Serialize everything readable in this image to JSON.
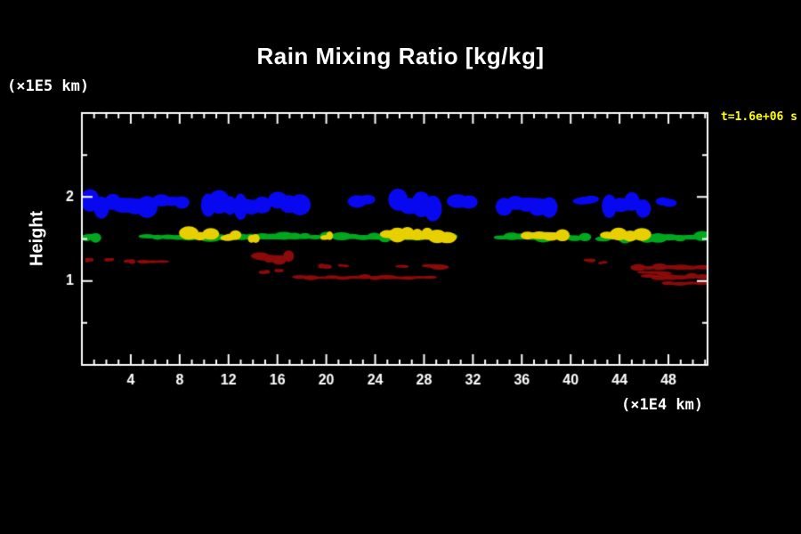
{
  "title": "Rain Mixing Ratio [kg/kg]",
  "labels": {
    "y_unit": "(×1E5 km)",
    "x_unit": "(×1E4 km)",
    "y_axis": "Height",
    "annotation": "t=1.6e+06 s"
  },
  "colors": {
    "background": "#000000",
    "foreground": "#ffffff",
    "annotation": "#ffff00"
  },
  "chart_data": {
    "type": "heatmap",
    "subtype": "filled-contour-cross-section",
    "title": "Rain Mixing Ratio [kg/kg]",
    "xlabel": "(×1E4 km)",
    "ylabel": "Height (×1E5 km)",
    "annotation": "t=1.6e+06 s",
    "grid": false,
    "legend": "none",
    "xlim": [
      0,
      51.2
    ],
    "ylim": [
      0,
      3.0
    ],
    "xticks": [
      4,
      8,
      12,
      16,
      20,
      24,
      28,
      32,
      36,
      40,
      44,
      48
    ],
    "x_minor_step": 1,
    "yticks": [
      1,
      2
    ],
    "y_minor_step": 0.5,
    "levels": {
      "dark_red": {
        "color": "#8b0a0a"
      },
      "green": {
        "color": "#00a81e"
      },
      "yellow": {
        "color": "#e8d000"
      },
      "blue": {
        "color": "#0808f0"
      }
    },
    "regions": [
      {
        "level": "dark_red",
        "x0": 0.3,
        "x1": 0.9,
        "y": 1.25,
        "h": 0.05
      },
      {
        "level": "dark_red",
        "x0": 1.9,
        "x1": 2.6,
        "y": 1.25,
        "h": 0.05
      },
      {
        "level": "dark_red",
        "x0": 3.5,
        "x1": 4.3,
        "y": 1.24,
        "h": 0.05
      },
      {
        "level": "dark_red",
        "x0": 4.7,
        "x1": 6.9,
        "y": 1.23,
        "h": 0.04
      },
      {
        "level": "dark_red",
        "x0": 14.2,
        "x1": 17.3,
        "y": 1.27,
        "h": 0.12
      },
      {
        "level": "dark_red",
        "x0": 14.6,
        "x1": 15.3,
        "y": 1.1,
        "h": 0.04
      },
      {
        "level": "dark_red",
        "x0": 15.8,
        "x1": 16.4,
        "y": 1.12,
        "h": 0.04
      },
      {
        "level": "dark_red",
        "x0": 17.4,
        "x1": 28.9,
        "y": 1.04,
        "h": 0.05
      },
      {
        "level": "dark_red",
        "x0": 19.4,
        "x1": 20.3,
        "y": 1.18,
        "h": 0.05
      },
      {
        "level": "dark_red",
        "x0": 21.0,
        "x1": 21.8,
        "y": 1.18,
        "h": 0.04
      },
      {
        "level": "dark_red",
        "x0": 25.8,
        "x1": 26.6,
        "y": 1.18,
        "h": 0.04
      },
      {
        "level": "dark_red",
        "x0": 28.0,
        "x1": 29.7,
        "y": 1.18,
        "h": 0.07
      },
      {
        "level": "dark_red",
        "x0": 41.2,
        "x1": 41.9,
        "y": 1.24,
        "h": 0.05
      },
      {
        "level": "dark_red",
        "x0": 42.3,
        "x1": 42.9,
        "y": 1.22,
        "h": 0.04
      },
      {
        "level": "dark_red",
        "x0": 45.1,
        "x1": 51.2,
        "y": 1.16,
        "h": 0.07
      },
      {
        "level": "dark_red",
        "x0": 45.5,
        "x1": 48.0,
        "y": 1.1,
        "h": 0.05
      },
      {
        "level": "dark_red",
        "x0": 46.0,
        "x1": 51.2,
        "y": 1.05,
        "h": 0.06
      },
      {
        "level": "dark_red",
        "x0": 47.5,
        "x1": 51.2,
        "y": 0.97,
        "h": 0.04
      },
      {
        "level": "green",
        "x0": 0.0,
        "x1": 1.5,
        "y": 1.53,
        "h": 0.1
      },
      {
        "level": "green",
        "x0": 4.9,
        "x1": 20.4,
        "y": 1.52,
        "h": 0.09
      },
      {
        "level": "green",
        "x0": 20.8,
        "x1": 30.6,
        "y": 1.52,
        "h": 0.1
      },
      {
        "level": "green",
        "x0": 33.9,
        "x1": 41.6,
        "y": 1.52,
        "h": 0.09
      },
      {
        "level": "green",
        "x0": 42.2,
        "x1": 51.2,
        "y": 1.52,
        "h": 0.1
      },
      {
        "level": "yellow",
        "x0": 8.3,
        "x1": 11.0,
        "y": 1.54,
        "h": 0.14
      },
      {
        "level": "yellow",
        "x0": 11.6,
        "x1": 12.9,
        "y": 1.53,
        "h": 0.11
      },
      {
        "level": "yellow",
        "x0": 13.7,
        "x1": 14.4,
        "y": 1.52,
        "h": 0.09
      },
      {
        "level": "yellow",
        "x0": 19.6,
        "x1": 20.5,
        "y": 1.52,
        "h": 0.09
      },
      {
        "level": "yellow",
        "x0": 24.6,
        "x1": 30.3,
        "y": 1.54,
        "h": 0.16
      },
      {
        "level": "yellow",
        "x0": 36.0,
        "x1": 39.8,
        "y": 1.54,
        "h": 0.14
      },
      {
        "level": "yellow",
        "x0": 42.5,
        "x1": 46.3,
        "y": 1.53,
        "h": 0.13
      },
      {
        "level": "blue",
        "x0": 0.2,
        "x1": 5.8,
        "y": 1.92,
        "h": 0.24
      },
      {
        "level": "blue",
        "x0": 6.1,
        "x1": 8.6,
        "y": 1.95,
        "h": 0.18
      },
      {
        "level": "blue",
        "x0": 9.9,
        "x1": 15.2,
        "y": 1.9,
        "h": 0.27
      },
      {
        "level": "blue",
        "x0": 15.6,
        "x1": 18.3,
        "y": 1.93,
        "h": 0.22
      },
      {
        "level": "blue",
        "x0": 22.1,
        "x1": 23.8,
        "y": 1.96,
        "h": 0.15
      },
      {
        "level": "blue",
        "x0": 25.4,
        "x1": 29.2,
        "y": 1.91,
        "h": 0.26
      },
      {
        "level": "blue",
        "x0": 30.3,
        "x1": 32.1,
        "y": 1.95,
        "h": 0.19
      },
      {
        "level": "blue",
        "x0": 34.1,
        "x1": 38.7,
        "y": 1.92,
        "h": 0.24
      },
      {
        "level": "blue",
        "x0": 40.5,
        "x1": 42.1,
        "y": 1.96,
        "h": 0.15
      },
      {
        "level": "blue",
        "x0": 42.7,
        "x1": 46.4,
        "y": 1.91,
        "h": 0.24
      },
      {
        "level": "blue",
        "x0": 47.2,
        "x1": 48.4,
        "y": 1.94,
        "h": 0.15
      }
    ]
  }
}
